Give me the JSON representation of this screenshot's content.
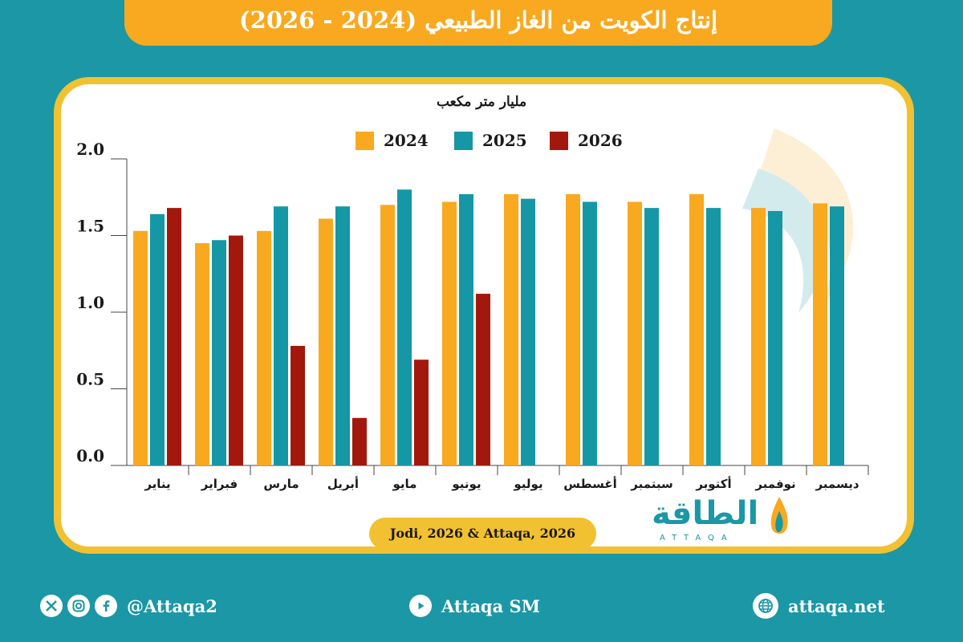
{
  "title": "إنتاج الكويت من الغاز الطبيعي (2024 - 2026)",
  "source": "Jodi, 2026 & Attaqa, 2026",
  "logo": {
    "text": "الطاقة",
    "sub": "ATTAQA"
  },
  "footer": {
    "social_handle": "@Attaqa2",
    "youtube": "Attaqa SM",
    "website": "attaqa.net",
    "icons": [
      "x-icon",
      "instagram-icon",
      "facebook-icon",
      "youtube-icon",
      "globe-icon"
    ]
  },
  "colors": {
    "2024": "#f8a91f",
    "2025": "#1597a6",
    "2026": "#a3180c",
    "accent": "#f2c131",
    "background": "#1b97a6"
  },
  "chart_data": {
    "type": "bar",
    "ylabel": "مليار متر مكعب",
    "ylim": [
      0,
      2.0
    ],
    "yticks": [
      "0.0",
      "0.5",
      "1.0",
      "1.5",
      "2.0"
    ],
    "yticks_values": [
      0,
      0.5,
      1.0,
      1.5,
      2.0
    ],
    "categories": [
      "يناير",
      "فبراير",
      "مارس",
      "أبريل",
      "مايو",
      "يونيو",
      "يوليو",
      "أغسطس",
      "سبتمبر",
      "أكتوبر",
      "نوفمبر",
      "ديسمبر"
    ],
    "legend_position": "top-center",
    "grid": false,
    "series": [
      {
        "name": "2024",
        "values": [
          1.53,
          1.45,
          1.53,
          1.61,
          1.7,
          1.72,
          1.77,
          1.77,
          1.72,
          1.77,
          1.68,
          1.71
        ]
      },
      {
        "name": "2025",
        "values": [
          1.64,
          1.47,
          1.69,
          1.69,
          1.8,
          1.77,
          1.74,
          1.72,
          1.68,
          1.68,
          1.66,
          1.69
        ]
      },
      {
        "name": "2026",
        "values": [
          1.68,
          1.5,
          0.78,
          0.31,
          0.69,
          1.12,
          null,
          null,
          null,
          null,
          null,
          null
        ]
      }
    ]
  }
}
